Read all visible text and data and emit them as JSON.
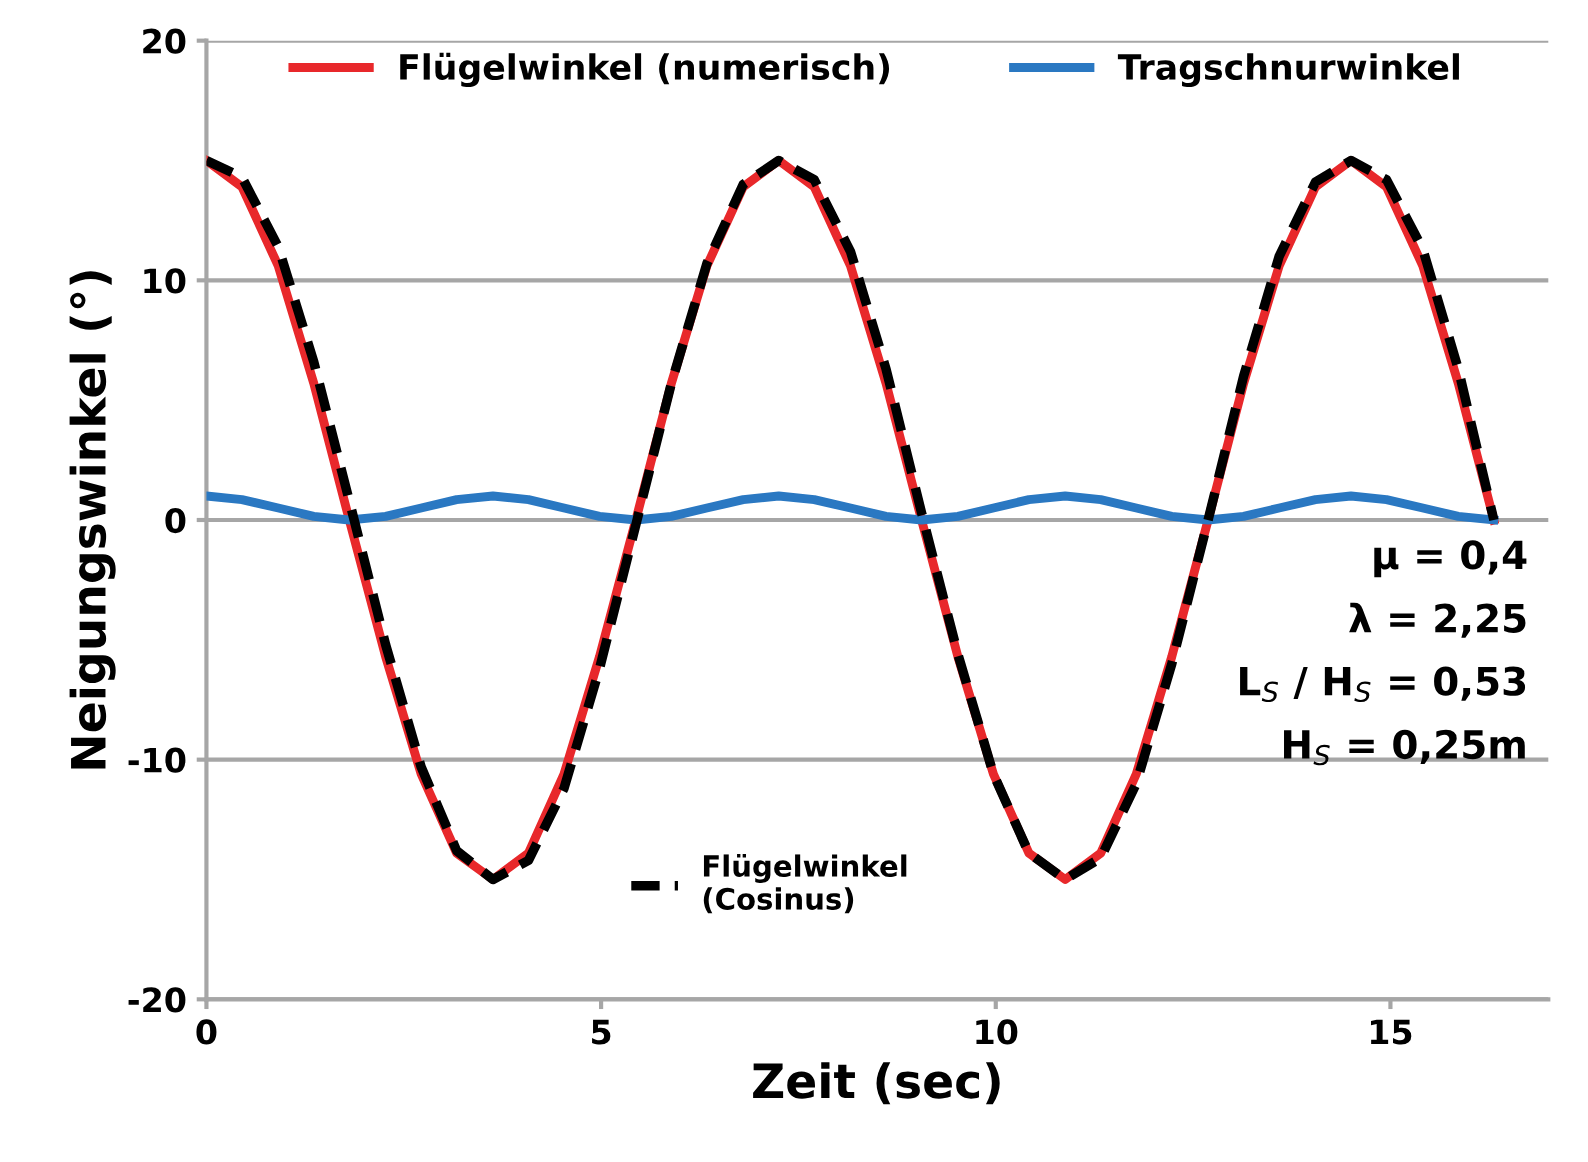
{
  "chart_data": {
    "type": "line",
    "xlabel": "Zeit (sec)",
    "ylabel": "Neigungswinkel (°)",
    "x": [
      0,
      0.45,
      0.91,
      1.36,
      1.81,
      2.27,
      2.72,
      3.17,
      3.63,
      4.08,
      4.53,
      4.98,
      5.44,
      5.89,
      6.34,
      6.8,
      7.25,
      7.7,
      8.16,
      8.61,
      9.06,
      9.52,
      9.97,
      10.42,
      10.88,
      11.33,
      11.78,
      12.23,
      12.69,
      13.14,
      13.59,
      14.05,
      14.5,
      14.95,
      15.41,
      15.86,
      16.31
    ],
    "series": [
      {
        "name": "Flügelwinkel (numerisch)",
        "color": "#e8282b",
        "line_style": "solid",
        "values": [
          15,
          13.9,
          10.6,
          5.7,
          0,
          -5.7,
          -10.6,
          -13.9,
          -15,
          -13.9,
          -10.6,
          -5.7,
          0,
          5.7,
          10.6,
          13.9,
          15,
          13.9,
          10.6,
          5.7,
          0,
          -5.7,
          -10.6,
          -13.9,
          -15,
          -13.9,
          -10.6,
          -5.7,
          0,
          5.7,
          10.6,
          13.9,
          15,
          13.9,
          10.6,
          5.7,
          0
        ]
      },
      {
        "name": "Tragschnurwinkel",
        "color": "#2a78c2",
        "line_style": "solid",
        "values": [
          1,
          0.85,
          0.5,
          0.15,
          0,
          0.15,
          0.5,
          0.85,
          1,
          0.85,
          0.5,
          0.15,
          0,
          0.15,
          0.5,
          0.85,
          1,
          0.85,
          0.5,
          0.15,
          0,
          0.15,
          0.5,
          0.85,
          1,
          0.85,
          0.5,
          0.15,
          0,
          0.15,
          0.5,
          0.85,
          1,
          0.85,
          0.5,
          0.15,
          0
        ]
      },
      {
        "name": "Flügelwinkel\n(Cosinus)",
        "color": "#000000",
        "line_style": "dashed",
        "values": [
          15,
          14.3,
          11.4,
          6.6,
          0.8,
          -5.2,
          -10.3,
          -13.8,
          -15,
          -14.2,
          -11.2,
          -6.2,
          -0.2,
          5.7,
          10.7,
          14,
          15,
          14.2,
          11.2,
          6.3,
          0.3,
          -5.6,
          -10.6,
          -13.9,
          -15,
          -14.1,
          -11,
          -6,
          0,
          6,
          11,
          14.1,
          15,
          14.2,
          11.3,
          6.3,
          0
        ]
      }
    ],
    "xlim": [
      0,
      17
    ],
    "xticks": [
      0,
      5,
      10,
      15
    ],
    "ylim": [
      -20,
      20
    ],
    "yticks": [
      -20,
      -10,
      0,
      10,
      20
    ],
    "grid": "y",
    "legend": "top",
    "annotations": [
      "μ = 0,4",
      "λ = 2,25",
      "L$_{S}$ / H$_{S}$ = 0,53",
      "H$_{S}$ = 0,25m"
    ]
  }
}
